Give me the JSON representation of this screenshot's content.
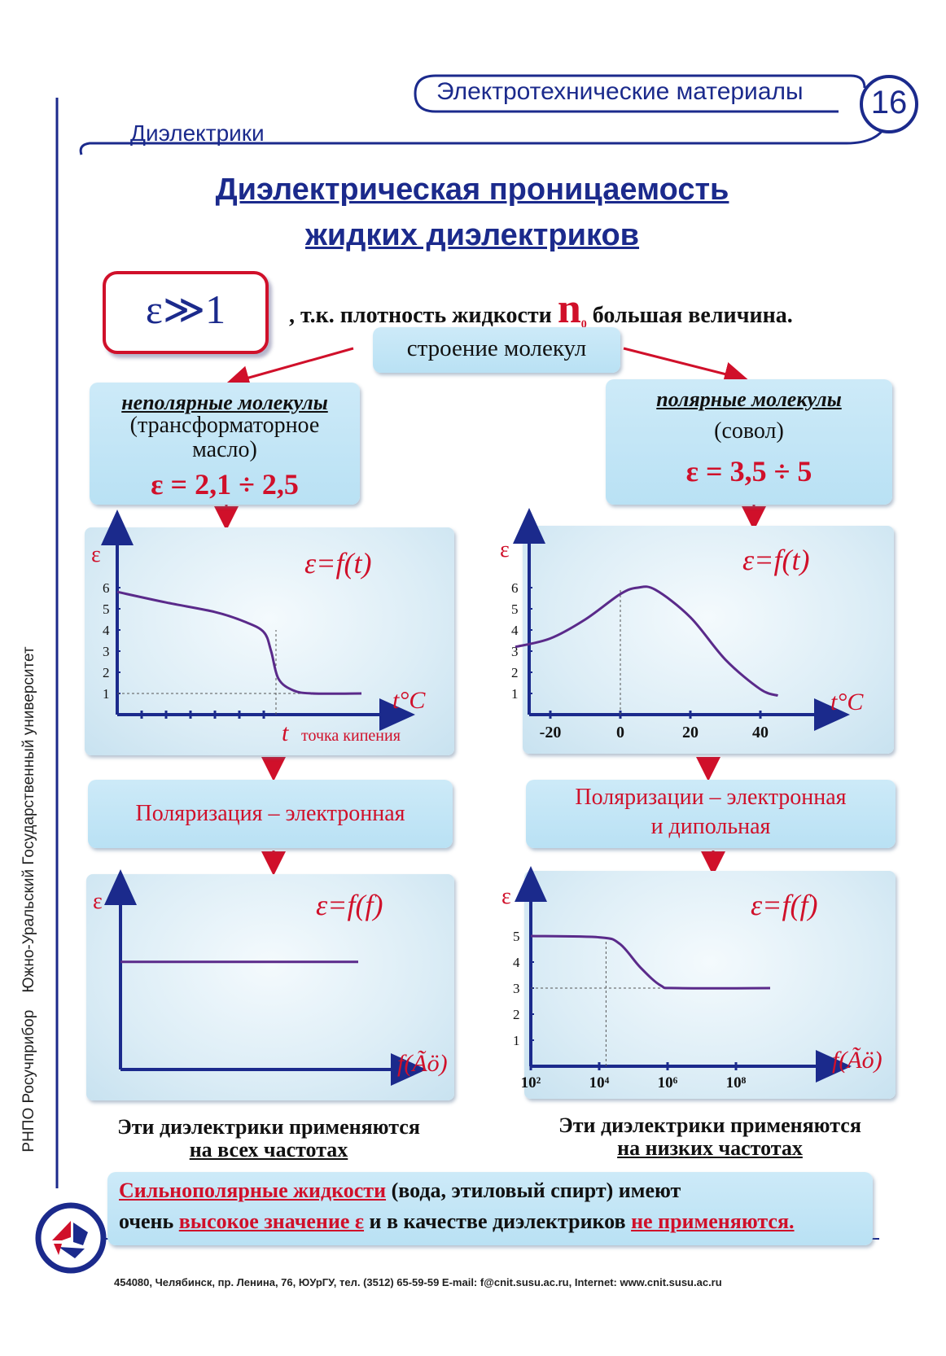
{
  "header": {
    "series_title": "Электротехнические материалы",
    "page_number": "16",
    "section": "Диэлектрики"
  },
  "title": {
    "line1": "Диэлектрическая проницаемость",
    "line2": "жидких диэлектриков"
  },
  "intro": {
    "formula": "ε≫1",
    "text_before": ", т.к. плотность жидкости",
    "symbol": "n",
    "subscript": "0",
    "text_after": "большая величина."
  },
  "structure_box": "строение молекул",
  "left_group": {
    "heading": "неполярные молекулы",
    "example": "(трансформаторное масло)",
    "epsilon": "ε = 2,1 ÷ 2,5",
    "polarization": "Поляризация – электронная",
    "usage_line1": "Эти диэлектрики применяются",
    "usage_line2": "на всех частотах"
  },
  "right_group": {
    "heading": "полярные молекулы",
    "example": "(совол)",
    "epsilon": "ε = 3,5 ÷ 5",
    "polarization_line1": "Поляризации – электронная",
    "polarization_line2": "и дипольная",
    "usage_line1": "Эти диэлектрики применяются",
    "usage_line2": "на низких частотах"
  },
  "note": {
    "part1": "Сильнополярные жидкости",
    "part2": " (вода, этиловый спирт) имеют",
    "part3": "очень ",
    "part4": "высокое значение ε",
    "part5": " и в качестве диэлектриков ",
    "part6": "не применяются."
  },
  "footer": "454080, Челябинск, пр. Ленина, 76, ЮУрГУ, тел. (3512) 65-59-59 E-mail: f@cnit.susu.ac.ru, Internet: www.cnit.susu.ac.ru",
  "side_text": "РНПО Росучприбор    Южно-Уральский Государственный университет",
  "colors": {
    "accent_red": "#d0102a",
    "curve": "#5a2a8a",
    "axis": "#1b2a8c",
    "box_bg": "#c4e6f6"
  },
  "chart_data": [
    {
      "type": "line",
      "id": "left-temp",
      "title": "ε=f(t)",
      "xlabel": "t°C",
      "ylabel": "ε",
      "x_annotation_symbol": "t",
      "x_annotation": "точка кипения",
      "yticks": [
        "1",
        "2",
        "3",
        "4",
        "5",
        "6"
      ],
      "ylim": [
        0,
        7.2
      ],
      "series": [
        {
          "values": [
            [
              0,
              5.8
            ],
            [
              2,
              5.3
            ],
            [
              4,
              4.85
            ],
            [
              5.2,
              4.4
            ],
            [
              6,
              3.9
            ],
            [
              6.3,
              3
            ],
            [
              6.6,
              1.7
            ],
            [
              7.2,
              1.15
            ],
            [
              8,
              1.0
            ],
            [
              10,
              1.0
            ]
          ]
        }
      ]
    },
    {
      "type": "line",
      "id": "right-temp",
      "title": "ε=f(t)",
      "xlabel": "t°C",
      "ylabel": "ε",
      "xticks": [
        "-20",
        "0",
        "20",
        "40"
      ],
      "yticks": [
        "1",
        "2",
        "3",
        "4",
        "5",
        "6"
      ],
      "xlim": [
        -30,
        45
      ],
      "ylim": [
        0,
        7
      ],
      "series": [
        {
          "values": [
            [
              -30,
              3.2
            ],
            [
              -20,
              3.6
            ],
            [
              -10,
              4.5
            ],
            [
              0,
              5.7
            ],
            [
              5,
              6.0
            ],
            [
              10,
              5.9
            ],
            [
              20,
              4.6
            ],
            [
              30,
              2.6
            ],
            [
              40,
              1.2
            ],
            [
              45,
              0.9
            ]
          ]
        }
      ]
    },
    {
      "type": "line",
      "id": "left-freq",
      "title": "ε=f(f)",
      "xlabel": "f(Ãö)",
      "ylabel": "ε",
      "series": [
        {
          "values": [
            [
              0,
              0.63
            ],
            [
              1,
              0.63
            ]
          ]
        }
      ]
    },
    {
      "type": "line",
      "id": "right-freq",
      "title": "ε=f(f)",
      "xlabel": "f(Ãö)",
      "ylabel": "ε",
      "xticks": [
        "10²",
        "10⁴",
        "10⁶",
        "10⁸"
      ],
      "yticks": [
        "1",
        "2",
        "3",
        "4",
        "5"
      ],
      "xlim": [
        2,
        9
      ],
      "ylim": [
        0,
        6
      ],
      "series": [
        {
          "values": [
            [
              2,
              5
            ],
            [
              4,
              4.95
            ],
            [
              4.6,
              4.7
            ],
            [
              5.2,
              3.8
            ],
            [
              5.8,
              3.1
            ],
            [
              6.3,
              3
            ],
            [
              9,
              3
            ]
          ]
        }
      ]
    }
  ]
}
